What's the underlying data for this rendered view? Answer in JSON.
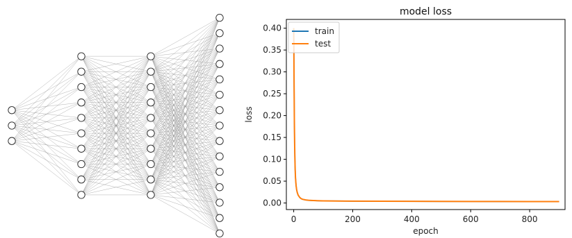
{
  "network": {
    "layers": [
      3,
      10,
      10,
      15
    ]
  },
  "chart_data": {
    "type": "line",
    "title": "model loss",
    "xlabel": "epoch",
    "ylabel": "loss",
    "xlim": [
      -25,
      920
    ],
    "ylim": [
      -0.015,
      0.42
    ],
    "xticks": [
      0,
      200,
      400,
      600,
      800
    ],
    "yticks": [
      0.0,
      0.05,
      0.1,
      0.15,
      0.2,
      0.25,
      0.3,
      0.35,
      0.4
    ],
    "legend": {
      "placement": "upper-left"
    },
    "grid": false,
    "series": [
      {
        "name": "train",
        "color": "#1f77b4",
        "x": [
          0,
          1,
          2,
          3,
          4,
          5,
          6,
          8,
          10,
          12,
          15,
          20,
          25,
          30,
          40,
          50,
          60,
          80,
          100,
          150,
          200,
          300,
          400,
          500,
          600,
          700,
          800,
          900
        ],
        "y": [
          0.4,
          0.3,
          0.2,
          0.14,
          0.1,
          0.075,
          0.058,
          0.04,
          0.03,
          0.024,
          0.018,
          0.013,
          0.01,
          0.0085,
          0.007,
          0.0062,
          0.0058,
          0.0052,
          0.0048,
          0.0045,
          0.0042,
          0.004,
          0.0038,
          0.0036,
          0.0035,
          0.0034,
          0.0033,
          0.0032
        ]
      },
      {
        "name": "test",
        "color": "#ff7f0e",
        "x": [
          0,
          1,
          2,
          3,
          4,
          5,
          6,
          8,
          10,
          12,
          15,
          20,
          25,
          30,
          40,
          50,
          60,
          80,
          100,
          150,
          200,
          300,
          400,
          500,
          600,
          700,
          800,
          900
        ],
        "y": [
          0.4,
          0.3,
          0.2,
          0.14,
          0.1,
          0.075,
          0.058,
          0.04,
          0.03,
          0.024,
          0.018,
          0.013,
          0.01,
          0.0085,
          0.007,
          0.0062,
          0.0058,
          0.0052,
          0.0048,
          0.0045,
          0.0042,
          0.004,
          0.0038,
          0.0036,
          0.0035,
          0.0034,
          0.0033,
          0.0032
        ]
      }
    ]
  }
}
